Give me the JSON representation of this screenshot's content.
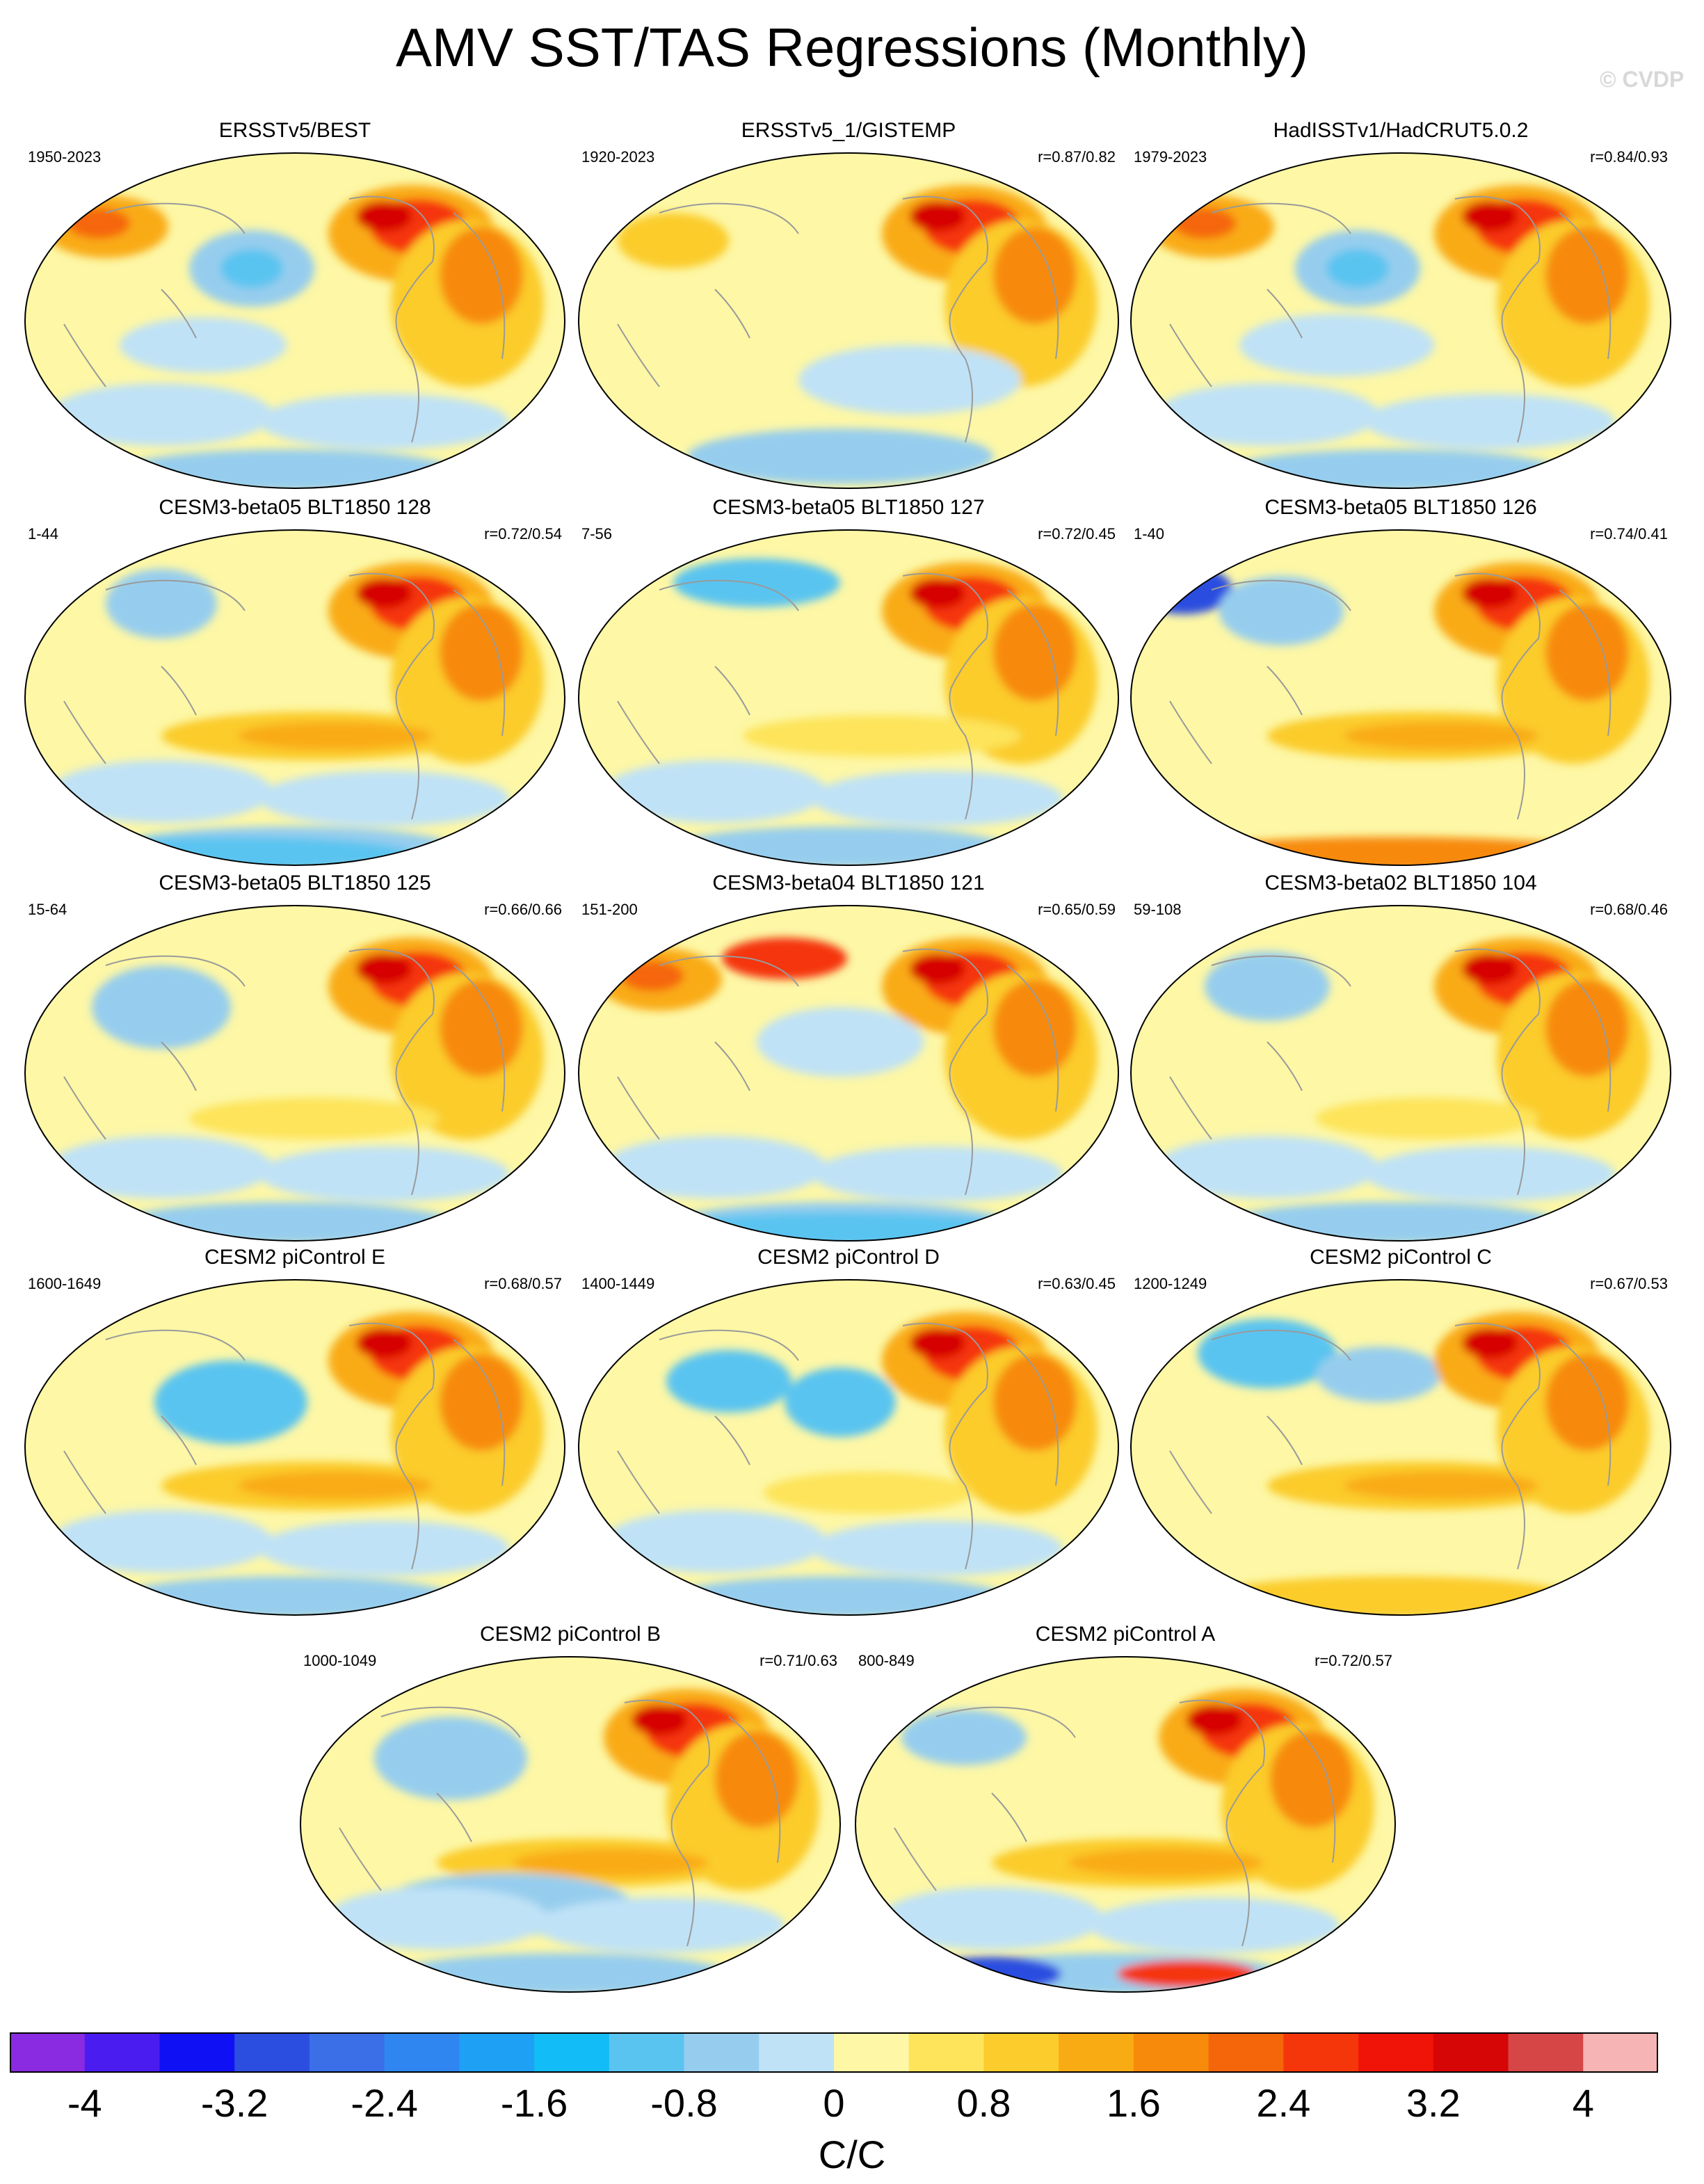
{
  "figure": {
    "title": "AMV SST/TAS Regressions (Monthly)",
    "watermark": "© CVDP",
    "units": "C/C"
  },
  "panels": [
    {
      "title": "ERSSTv5/BEST",
      "period": "1950-2023",
      "corr": "",
      "pattern": "obs1"
    },
    {
      "title": "ERSSTv5_1/GISTEMP",
      "period": "1920-2023",
      "corr": "r=0.87/0.82",
      "pattern": "obs2"
    },
    {
      "title": "HadISSTv1/HadCRUT5.0.2",
      "period": "1979-2023",
      "corr": "r=0.84/0.93",
      "pattern": "obs3"
    },
    {
      "title": "CESM3-beta05 BLT1850 128",
      "period": "1-44",
      "corr": "r=0.72/0.54",
      "pattern": "m1"
    },
    {
      "title": "CESM3-beta05 BLT1850 127",
      "period": "7-56",
      "corr": "r=0.72/0.45",
      "pattern": "m2"
    },
    {
      "title": "CESM3-beta05 BLT1850 126",
      "period": "1-40",
      "corr": "r=0.74/0.41",
      "pattern": "m3"
    },
    {
      "title": "CESM3-beta05 BLT1850 125",
      "period": "15-64",
      "corr": "r=0.66/0.66",
      "pattern": "m4"
    },
    {
      "title": "CESM3-beta04 BLT1850 121",
      "period": "151-200",
      "corr": "r=0.65/0.59",
      "pattern": "m5"
    },
    {
      "title": "CESM3-beta02 BLT1850 104",
      "period": "59-108",
      "corr": "r=0.68/0.46",
      "pattern": "m6"
    },
    {
      "title": "CESM2 piControl E",
      "period": "1600-1649",
      "corr": "r=0.68/0.57",
      "pattern": "c1"
    },
    {
      "title": "CESM2 piControl D",
      "period": "1400-1449",
      "corr": "r=0.63/0.45",
      "pattern": "c2"
    },
    {
      "title": "CESM2 piControl C",
      "period": "1200-1249",
      "corr": "r=0.67/0.53",
      "pattern": "c3"
    },
    {
      "title": "CESM2 piControl B",
      "period": "1000-1049",
      "corr": "r=0.71/0.63",
      "pattern": "c4"
    },
    {
      "title": "CESM2 piControl A",
      "period": "800-849",
      "corr": "r=0.72/0.57",
      "pattern": "c5"
    }
  ],
  "colorbar": {
    "colors": [
      "#8a2be2",
      "#4b1cf0",
      "#1010f5",
      "#2c4ee0",
      "#3a6fe8",
      "#2f86f0",
      "#1ea0f5",
      "#12bcf6",
      "#5ac4f0",
      "#96cdee",
      "#bfe2f6",
      "#fdf7a6",
      "#fde45a",
      "#fbcc2c",
      "#f9ab14",
      "#f78a0a",
      "#f5660a",
      "#f5360a",
      "#f01408",
      "#d60606",
      "#d64646",
      "#f6b4b4"
    ],
    "labels": [
      "-4",
      "-3.2",
      "-2.4",
      "-1.6",
      "-0.8",
      "0",
      "0.8",
      "1.6",
      "2.4",
      "3.2",
      "4"
    ]
  }
}
